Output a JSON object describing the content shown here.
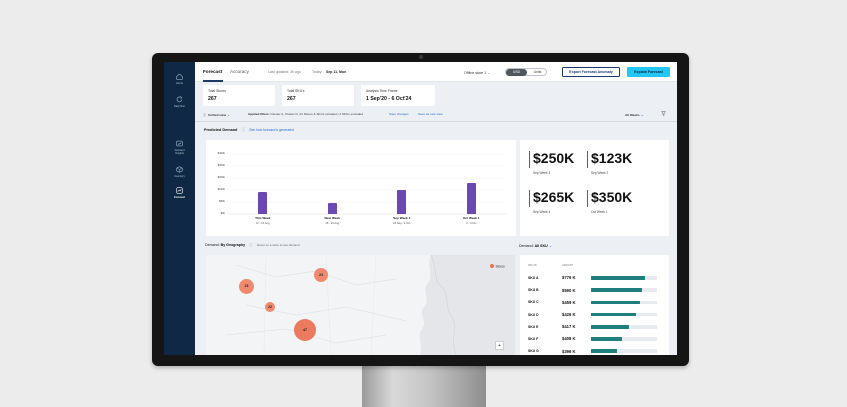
{
  "header": {
    "tabs": [
      "Forecast",
      "Accuracy"
    ],
    "last_updated": "Last updated: 3h ago",
    "today_label": "Today:",
    "today_value": "Sep 11, Mon",
    "offline_label": "Offline store 1",
    "toggle_options": [
      "USD",
      "Units"
    ],
    "export_label": "Export Forecast Anomaly",
    "explain_label": "Explain Forecast"
  },
  "sidebar": {
    "items": [
      {
        "label": "Home",
        "icon": "home-icon"
      },
      {
        "label": "Daily Run",
        "icon": "refresh-icon"
      },
      {
        "label": "Demand Insights",
        "icon": "insights-icon"
      },
      {
        "label": "Inventory",
        "icon": "inventory-icon"
      },
      {
        "label": "Forecast",
        "icon": "forecast-icon"
      }
    ]
  },
  "stats": [
    {
      "label": "Total Stores",
      "value": "267"
    },
    {
      "label": "Total SKU's",
      "value": "267"
    },
    {
      "label": "Analysis Time Frame",
      "value": "1 Sep'20 - 6 Oct'24"
    }
  ],
  "filters": {
    "view_label": "Unified view",
    "applied_label": "Applied filters:",
    "applied_text": "Cluster A, Cluster D, 24 Stores & SKUs included | 4 SKUs excluded",
    "save_changes": "Save changes",
    "save_new_view": "Save as new view",
    "period": "All Weeks"
  },
  "predicted": {
    "title": "Predicted Demand",
    "link": "See how forecast is generated"
  },
  "chart_data": {
    "type": "bar",
    "categories": [
      "This Week",
      "Next Week",
      "Sep Week 4",
      "Oct Week 1"
    ],
    "subtitles": [
      "11 - 16 Aug",
      "18 - 23 Aug",
      "25 Sep - 1 Oct",
      "2 - 9 Oct"
    ],
    "values": [
      250,
      123,
      265,
      350
    ],
    "yticks": [
      "$400k",
      "$300k",
      "$200k",
      "$100k",
      "$50k",
      "$0k"
    ],
    "ylim": [
      0,
      400
    ],
    "color": "#6c48b3"
  },
  "kpis": [
    {
      "value": "$250K",
      "caption": "Sep Week 3"
    },
    {
      "value": "$123K",
      "caption": "Sep Week 2"
    },
    {
      "value": "$265K",
      "caption": "Sep Week 4"
    },
    {
      "value": "$350K",
      "caption": "Oct Week 1"
    }
  ],
  "geo": {
    "label": "Demand:",
    "value": "By Geography",
    "hint": "Hover on a store to see demand",
    "legend": "Stores",
    "zoom": "+",
    "clusters": [
      "23",
      "23",
      "22",
      "47"
    ]
  },
  "sku": {
    "label": "Demand:",
    "value": "All SKU",
    "col_sku": "SKU ID",
    "col_amount": "AMOUNT",
    "rows": [
      {
        "name": "SKU A",
        "amount": "$776 K",
        "pct": 0.82
      },
      {
        "name": "SKU B",
        "amount": "$590 K",
        "pct": 0.78
      },
      {
        "name": "SKU C",
        "amount": "$459 K",
        "pct": 0.74
      },
      {
        "name": "SKU D",
        "amount": "$426 K",
        "pct": 0.68
      },
      {
        "name": "SKU E",
        "amount": "$417 K",
        "pct": 0.58
      },
      {
        "name": "SKU F",
        "amount": "$408 K",
        "pct": 0.47
      },
      {
        "name": "SKU G",
        "amount": "$396 K",
        "pct": 0.4
      }
    ]
  }
}
